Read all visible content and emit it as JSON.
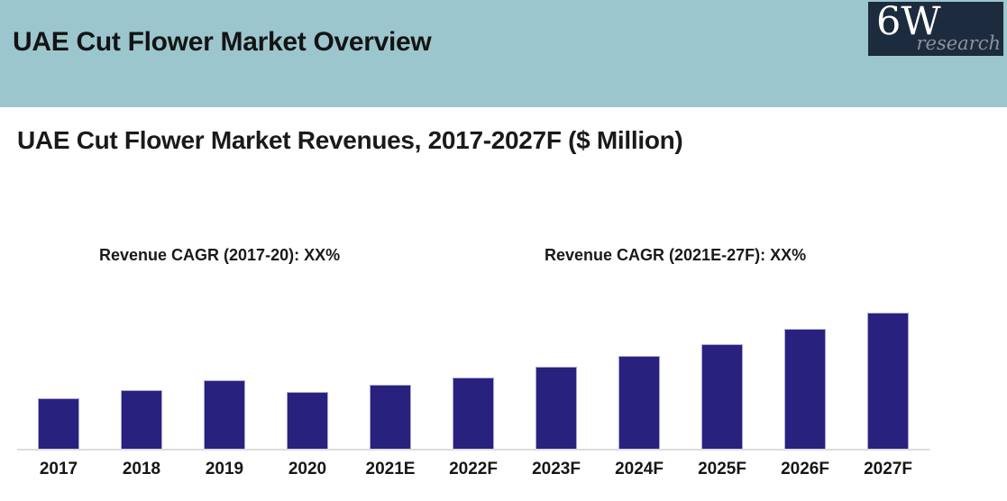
{
  "header": {
    "title": "UAE Cut Flower Market Overview",
    "logo": {
      "main": "6W",
      "sub": "research"
    }
  },
  "subtitle": "UAE Cut Flower Market Revenues, 2017-2027F ($ Million)",
  "annotations": {
    "cagr_left": "Revenue CAGR (2017-20): XX%",
    "cagr_right": "Revenue CAGR (2021E-27F): XX%"
  },
  "colors": {
    "header_background": "#9cc6ce",
    "logo_background": "#1d2b3e",
    "logo_sub_text": "#8d929b",
    "bar_fill": "#29217e",
    "bar_border": "#aaa5d6",
    "axis_line": "#dcdcdc",
    "text": "#1a1a1a"
  },
  "chart_data": {
    "type": "bar",
    "title": "UAE Cut Flower Market Revenues, 2017-2027F ($ Million)",
    "categories": [
      "2017",
      "2018",
      "2019",
      "2020",
      "2021E",
      "2022F",
      "2023F",
      "2024F",
      "2025F",
      "2026F",
      "2027F"
    ],
    "values_relative": [
      37,
      43,
      50,
      42,
      47,
      52,
      60,
      68,
      77,
      88,
      100
    ],
    "value_axis_note": "No numeric y-axis or data labels shown in source; values estimated as percent of tallest bar (2027F = 100)",
    "xlabel": "",
    "ylabel": "",
    "ylim_relative": [
      0,
      105
    ],
    "grid": false,
    "legend": false,
    "y_axis_shown": false,
    "annotations": [
      "Revenue CAGR (2017-20): XX%",
      "Revenue CAGR (2021E-27F): XX%"
    ]
  }
}
